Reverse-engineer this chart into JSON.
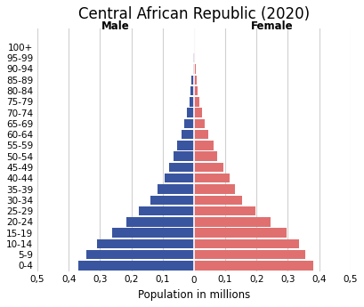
{
  "title": "Central African Republic (2020)",
  "xlabel": "Population in millions",
  "male_label": "Male",
  "female_label": "Female",
  "age_groups": [
    "0-4",
    "5-9",
    "10-14",
    "15-19",
    "20-24",
    "25-29",
    "30-34",
    "35-39",
    "40-44",
    "45-49",
    "50-54",
    "55-59",
    "60-64",
    "65-69",
    "70-74",
    "75-79",
    "80-84",
    "85-89",
    "90-94",
    "95-99",
    "100+"
  ],
  "male_values": [
    0.37,
    0.345,
    0.31,
    0.26,
    0.215,
    0.175,
    0.14,
    0.115,
    0.095,
    0.08,
    0.065,
    0.053,
    0.04,
    0.03,
    0.022,
    0.015,
    0.01,
    0.007,
    0.004,
    0.002,
    0.001
  ],
  "female_values": [
    0.38,
    0.355,
    0.335,
    0.295,
    0.245,
    0.195,
    0.155,
    0.13,
    0.115,
    0.095,
    0.075,
    0.062,
    0.047,
    0.035,
    0.026,
    0.018,
    0.012,
    0.008,
    0.005,
    0.002,
    0.001
  ],
  "male_color": "#3a55a0",
  "female_color": "#e07070",
  "background_color": "#ffffff",
  "xlim": 0.5,
  "tick_labels": [
    "0,5",
    "0,4",
    "0,3",
    "0,2",
    "0,1",
    "0",
    "0,1",
    "0,2",
    "0,3",
    "0,4",
    "0,5"
  ],
  "grid_color": "#d0d0d0",
  "title_fontsize": 12,
  "label_fontsize": 8.5,
  "tick_fontsize": 7.5,
  "ytick_fontsize": 7.5
}
